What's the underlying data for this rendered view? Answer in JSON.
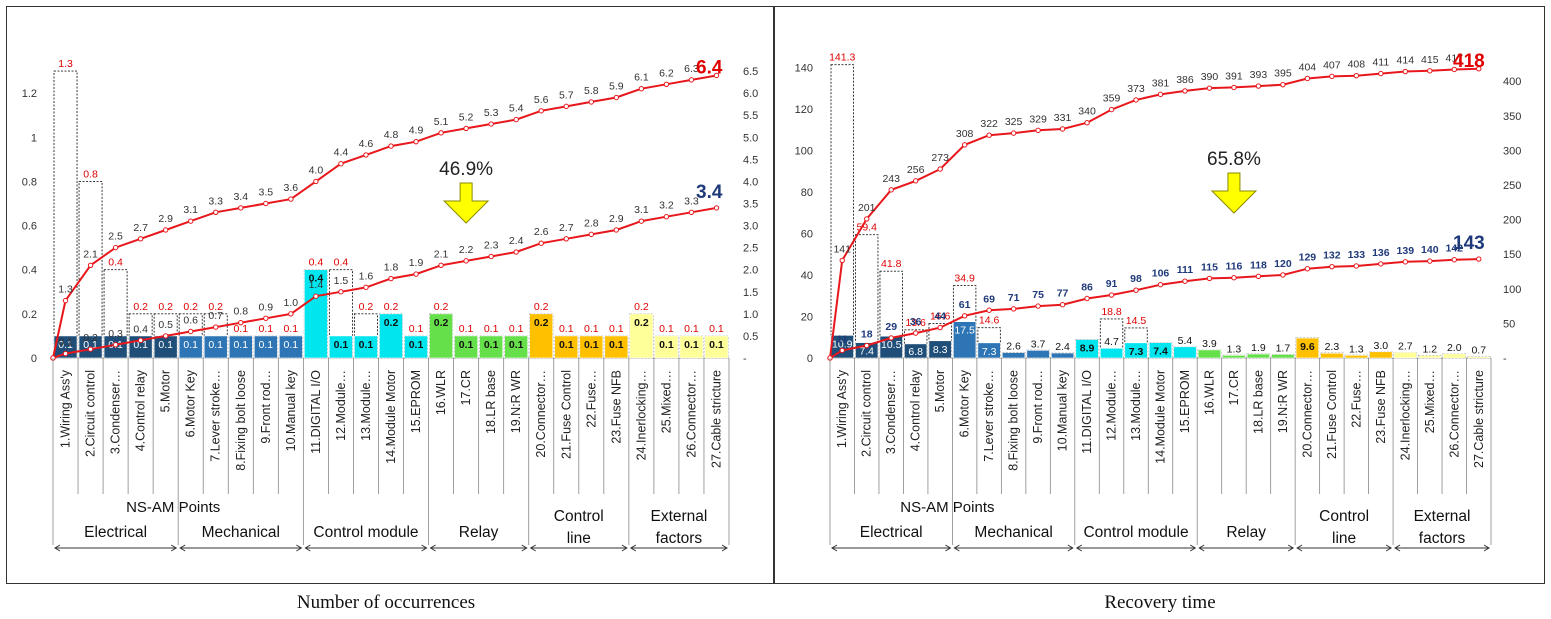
{
  "chart_data": [
    {
      "type": "bar",
      "caption": "Number of occurrences",
      "categories": [
        "1.Wiring Ass'y",
        "2.Circuit control",
        "3.Condenser…",
        "4.Control relay",
        "5.Motor",
        "6.Motor Key",
        "7.Lever stroke…",
        "8.Fixing bolt loose",
        "9.Front rod…",
        "10.Manual key",
        "11.DIGITAL I/O",
        "12.Module…",
        "13.Module…",
        "14.Module Motor",
        "15.EPROM",
        "16.WLR",
        "17.CR",
        "18.LR base",
        "19.N:R WR",
        "20.Connector…",
        "21.Fuse Control",
        "22.Fuse…",
        "23.Fuse NFB",
        "24.Inerlocking…",
        "25.Mixed…",
        "26.Connector…",
        "27.Cable stricture"
      ],
      "x_title": "NS-AM Points",
      "groups": [
        {
          "name": "Electrical",
          "start": 0,
          "end": 4
        },
        {
          "name": "Mechanical",
          "start": 5,
          "end": 9
        },
        {
          "name": "Control module",
          "start": 10,
          "end": 14
        },
        {
          "name": "Relay",
          "start": 15,
          "end": 18
        },
        {
          "name": "Control line",
          "start": 19,
          "end": 22
        },
        {
          "name": "External factors",
          "start": 23,
          "end": 26
        }
      ],
      "bars_before": [
        1.3,
        0.8,
        0.4,
        0.2,
        0.2,
        0.2,
        0.2,
        0.1,
        0.1,
        0.1,
        0.4,
        0.4,
        0.2,
        0.2,
        0.1,
        0.2,
        0.1,
        0.1,
        0.1,
        0.2,
        0.1,
        0.1,
        0.1,
        0.2,
        0.1,
        0.1,
        0.1
      ],
      "bars_before_labels": [
        "1.3",
        "0.8",
        "0.4",
        "0.2",
        "0.2",
        "0.2",
        "0.2",
        "0.1",
        "0.1",
        "0.1",
        "0.4",
        "0.4",
        "0.2",
        "0.2",
        "0.1",
        "0.2",
        "0.1",
        "0.1",
        "0.1",
        "0.2",
        "0.1",
        "0.1",
        "0.1",
        "0.2",
        "0.1",
        "0.1",
        "0.1"
      ],
      "bars_after": [
        0.1,
        0.1,
        0.1,
        0.1,
        0.1,
        0.1,
        0.1,
        0.1,
        0.1,
        0.1,
        0.4,
        0.1,
        0.1,
        0.2,
        0.1,
        0.2,
        0.1,
        0.1,
        0.1,
        0.2,
        0.1,
        0.1,
        0.1,
        0.2,
        0.1,
        0.1,
        0.1
      ],
      "bars_after_labels": [
        "0.1",
        "0.1",
        "0.1",
        "0.1",
        "0.1",
        "0.1",
        "0.1",
        "0.1",
        "0.1",
        "0.1",
        "0.4",
        "0.1",
        "0.1",
        "0.2",
        "0.1",
        "0.2",
        "0.1",
        "0.1",
        "0.1",
        "0.2",
        "0.1",
        "0.1",
        "0.1",
        "0.2",
        "0.1",
        "0.1",
        "0.1"
      ],
      "cum_before": [
        1.3,
        2.1,
        2.5,
        2.7,
        2.9,
        3.1,
        3.3,
        3.4,
        3.5,
        3.6,
        4.0,
        4.4,
        4.6,
        4.8,
        4.9,
        5.1,
        5.2,
        5.3,
        5.4,
        5.6,
        5.7,
        5.8,
        5.9,
        6.1,
        6.2,
        6.3,
        6.4
      ],
      "cum_before_labels": [
        "1.3",
        "2.1",
        "2.5",
        "2.7",
        "2.9",
        "3.1",
        "3.3",
        "3.4",
        "3.5",
        "3.6",
        "4.0",
        "4.4",
        "4.6",
        "4.8",
        "4.9",
        "5.1",
        "5.2",
        "5.3",
        "5.4",
        "5.6",
        "5.7",
        "5.8",
        "5.9",
        "6.1",
        "6.2",
        "6.3",
        "6.4"
      ],
      "cum_after": [
        0.1,
        0.2,
        0.3,
        0.4,
        0.5,
        0.6,
        0.7,
        0.8,
        0.9,
        1.0,
        1.4,
        1.5,
        1.6,
        1.8,
        1.9,
        2.1,
        2.2,
        2.3,
        2.4,
        2.6,
        2.7,
        2.8,
        2.9,
        3.1,
        3.2,
        3.3,
        3.4
      ],
      "cum_after_labels": [
        "0.1",
        "0.2",
        "0.3",
        "0.4",
        "0.5",
        "0.6",
        "0.7",
        "0.8",
        "0.9",
        "1.0",
        "1.4",
        "1.5",
        "1.6",
        "1.8",
        "1.9",
        "2.1",
        "2.2",
        "2.3",
        "2.4",
        "2.6",
        "2.7",
        "2.8",
        "2.9",
        "3.1",
        "3.2",
        "3.3",
        "3.4"
      ],
      "reduction_label": "46.9%",
      "y_left_ticks": [
        "0",
        "0.2",
        "0.4",
        "0.6",
        "0.8",
        "1",
        "1.2"
      ],
      "y_left_max": 1.35,
      "y_right_ticks": [
        "-",
        "0.5",
        "1.0",
        "1.5",
        "2.0",
        "2.5",
        "3.0",
        "3.5",
        "4.0",
        "4.5",
        "5.0",
        "5.5",
        "6.0",
        "6.5"
      ],
      "y_right_max": 6.75,
      "group_colors": [
        "#1f4e79",
        "#2e75b6",
        "#00e5ee",
        "#66e04a",
        "#ffc000",
        "#ffff99"
      ],
      "total_before_label": "6.4",
      "total_after_label": "3.4"
    },
    {
      "type": "bar",
      "caption": "Recovery time",
      "categories": [
        "1.Wiring Ass'y",
        "2.Circuit control",
        "3.Condenser…",
        "4.Control relay",
        "5.Motor",
        "6.Motor Key",
        "7.Lever stroke…",
        "8.Fixing bolt loose",
        "9.Front rod…",
        "10.Manual key",
        "11.DIGITAL I/O",
        "12.Module…",
        "13.Module…",
        "14.Module Motor",
        "15.EPROM",
        "16.WLR",
        "17.CR",
        "18.LR base",
        "19.N:R WR",
        "20.Connector…",
        "21.Fuse Control",
        "22.Fuse…",
        "23.Fuse NFB",
        "24.Inerlocking…",
        "25.Mixed…",
        "26.Connector…",
        "27.Cable stricture"
      ],
      "x_title": "NS-AM Points",
      "groups": [
        {
          "name": "Electrical",
          "start": 0,
          "end": 4
        },
        {
          "name": "Mechanical",
          "start": 5,
          "end": 9
        },
        {
          "name": "Control module",
          "start": 10,
          "end": 14
        },
        {
          "name": "Relay",
          "start": 15,
          "end": 18
        },
        {
          "name": "Control line",
          "start": 19,
          "end": 22
        },
        {
          "name": "External factors",
          "start": 23,
          "end": 26
        }
      ],
      "bars_before": [
        141.3,
        59.4,
        41.8,
        13.6,
        16.6,
        34.9,
        14.6,
        2.6,
        3.7,
        2.4,
        8.9,
        18.8,
        14.5,
        7.4,
        5.4,
        3.9,
        1.3,
        1.9,
        1.7,
        9.6,
        2.3,
        1.3,
        3.0,
        2.7,
        1.2,
        2.0,
        0.7
      ],
      "bars_before_labels": [
        "141.3",
        "59.4",
        "41.8",
        "13.6",
        "16.6",
        "34.9",
        "14.6",
        "",
        "",
        "",
        "",
        "18.8",
        "14.5",
        "",
        "",
        "",
        "",
        "",
        "",
        "",
        "",
        "",
        "",
        "",
        "",
        "",
        ""
      ],
      "bars_after": [
        10.9,
        7.4,
        10.5,
        6.8,
        8.3,
        17.5,
        7.3,
        2.6,
        3.7,
        2.4,
        8.9,
        4.7,
        7.3,
        7.4,
        5.4,
        3.9,
        1.3,
        1.9,
        1.7,
        9.6,
        2.3,
        1.3,
        3.0,
        2.7,
        1.2,
        2.0,
        0.7
      ],
      "bars_after_labels": [
        "10.9",
        "7.4",
        "10.5",
        "6.8",
        "8.3",
        "17.5",
        "7.3",
        "2.6",
        "3.7",
        "2.4",
        "8.9",
        "4.7",
        "7.3",
        "7.4",
        "5.4",
        "3.9",
        "1.3",
        "1.9",
        "1.7",
        "9.6",
        "2.3",
        "1.3",
        "3.0",
        "2.7",
        "1.2",
        "2.0",
        "0.7"
      ],
      "cum_before": [
        141,
        201,
        243,
        256,
        273,
        308,
        322,
        325,
        329,
        331,
        340,
        359,
        373,
        381,
        386,
        390,
        391,
        393,
        395,
        404,
        407,
        408,
        411,
        414,
        415,
        417,
        418
      ],
      "cum_before_labels": [
        "141",
        "201",
        "243",
        "256",
        "273",
        "308",
        "322",
        "325",
        "329",
        "331",
        "340",
        "359",
        "373",
        "381",
        "386",
        "390",
        "391",
        "393",
        "395",
        "404",
        "407",
        "408",
        "411",
        "414",
        "415",
        "417",
        "418"
      ],
      "cum_after": [
        11,
        18,
        29,
        36,
        44,
        61,
        69,
        71,
        75,
        77,
        86,
        91,
        98,
        106,
        111,
        115,
        116,
        118,
        120,
        129,
        132,
        133,
        136,
        139,
        140,
        142,
        143
      ],
      "cum_after_labels": [
        "11",
        "18",
        "29",
        "36",
        "44",
        "61",
        "69",
        "71",
        "75",
        "77",
        "86",
        "91",
        "98",
        "106",
        "111",
        "115",
        "116",
        "118",
        "120",
        "129",
        "132",
        "133",
        "136",
        "139",
        "140",
        "142",
        "143"
      ],
      "reduction_label": "65.8%",
      "y_left_ticks": [
        "0",
        "20",
        "40",
        "60",
        "80",
        "100",
        "120",
        "140"
      ],
      "y_left_max": 145,
      "y_right_ticks": [
        "-",
        "50",
        "100",
        "150",
        "200",
        "250",
        "300",
        "350",
        "400"
      ],
      "y_right_max": 435,
      "group_colors": [
        "#1f4e79",
        "#2e75b6",
        "#00e5ee",
        "#66e04a",
        "#ffc000",
        "#ffff99"
      ],
      "total_before_label": "418",
      "total_after_label": "143"
    }
  ]
}
